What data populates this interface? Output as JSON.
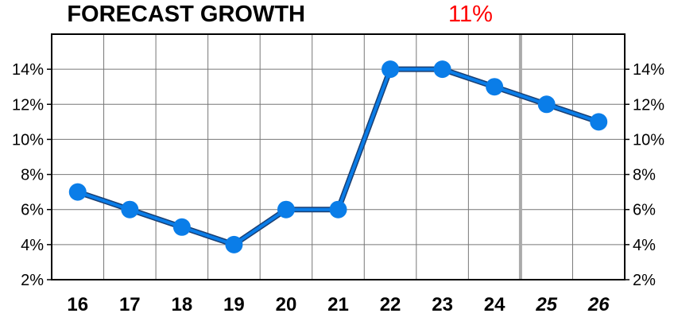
{
  "chart_data": {
    "type": "line",
    "title": "FORECAST GROWTH",
    "title_value": "11%",
    "title_value_color": "#ff0000",
    "categories": [
      "16",
      "17",
      "18",
      "19",
      "20",
      "21",
      "22",
      "23",
      "24",
      "25",
      "26"
    ],
    "forecast_categories": [
      "25",
      "26"
    ],
    "series": [
      {
        "values": [
          7,
          6,
          5,
          4,
          6,
          6,
          14,
          14,
          13,
          12,
          11
        ],
        "color": "#0a7de8"
      }
    ],
    "y_ticks": [
      "2%",
      "4%",
      "6%",
      "8%",
      "10%",
      "12%",
      "14%"
    ],
    "y_tick_values": [
      2,
      4,
      6,
      8,
      10,
      12,
      14
    ],
    "ylim": [
      2,
      16
    ],
    "xlabel": "",
    "ylabel": "",
    "grid": true,
    "y_axis_labels_both_sides": true
  }
}
